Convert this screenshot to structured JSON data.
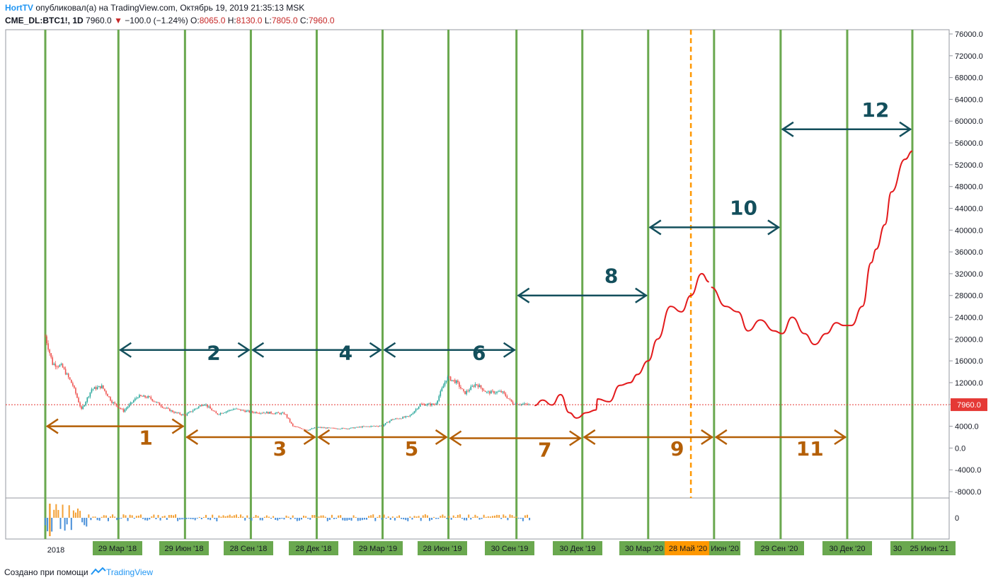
{
  "header": {
    "brand": "HortTV",
    "published": "опубликовал(а) на TradingView.com, Октябрь 19, 2019 21:35:13 MSK"
  },
  "symbol_line": {
    "symbol": "CME_DL:BTC1!, 1D",
    "last": "7960.0",
    "change": "−100.0 (−1.24%)",
    "o_label": "O:",
    "o_value": "8065.0",
    "h_label": "H:",
    "h_value": "8130.0",
    "l_label": "L:",
    "l_value": "7805.0",
    "c_label": "C:",
    "c_value": "7960.0"
  },
  "footer": {
    "created": "Создано при помощи",
    "brand": "TradingView"
  },
  "colors": {
    "green_line": "#6aa84f",
    "orange_arrow": "#b45f06",
    "teal_arrow": "#134f5c",
    "projection": "#e31a1c",
    "price_line": "#e53935",
    "candle_up": "#26a69a",
    "candle_down": "#ef5350",
    "date_badge": "#6aa84f",
    "highlight_badge": "#ff9800"
  },
  "chart_data": {
    "type": "line",
    "title": "",
    "ylim": [
      -10000,
      77000
    ],
    "y_ticks": [
      "76000.0",
      "72000.0",
      "68000.0",
      "64000.0",
      "60000.0",
      "56000.0",
      "52000.0",
      "48000.0",
      "44000.0",
      "40000.0",
      "36000.0",
      "32000.0",
      "28000.0",
      "24000.0",
      "20000.0",
      "16000.0",
      "12000.0",
      "8000.0",
      "4000.0",
      "0.0",
      "-4000.0",
      "-8000.0"
    ],
    "current_price": {
      "value": 7960,
      "label": "7960.0"
    },
    "volume_tick": "0",
    "x_labels": [
      "2018",
      "29 Мар '18",
      "29 Июн '18",
      "28 Сен '18",
      "28 Дек '18",
      "29 Мар '19",
      "28 Июн '19",
      "30 Сен '19",
      "30 Дек '19",
      "30 Мар '20",
      "28 Май '20",
      "Июн '20",
      "29 Сен '20",
      "30 Дек '20",
      "30",
      "25 Июн '21"
    ],
    "cycle_dates": [
      "2017-12-18",
      "2018-03-29",
      "2018-06-29",
      "2018-09-28",
      "2018-12-28",
      "2019-03-29",
      "2019-06-28",
      "2019-09-30",
      "2019-12-30",
      "2020-03-30",
      "2020-06-29",
      "2020-09-29",
      "2020-12-30",
      "2021-03-30"
    ],
    "highlight_date": {
      "date": "2020-05-28",
      "label": "28 Май '20"
    },
    "historical_price": [
      [
        "2017-12-18",
        20500
      ],
      [
        "2017-12-28",
        15500
      ],
      [
        "2018-01-10",
        15000
      ],
      [
        "2018-01-25",
        11500
      ],
      [
        "2018-02-06",
        7000
      ],
      [
        "2018-02-20",
        10800
      ],
      [
        "2018-03-06",
        11300
      ],
      [
        "2018-03-20",
        8500
      ],
      [
        "2018-04-05",
        6800
      ],
      [
        "2018-04-25",
        9500
      ],
      [
        "2018-05-10",
        9300
      ],
      [
        "2018-05-30",
        7500
      ],
      [
        "2018-06-15",
        6500
      ],
      [
        "2018-06-29",
        6000
      ],
      [
        "2018-07-25",
        8200
      ],
      [
        "2018-08-12",
        6200
      ],
      [
        "2018-09-05",
        7200
      ],
      [
        "2018-09-28",
        6600
      ],
      [
        "2018-10-20",
        6500
      ],
      [
        "2018-11-14",
        6300
      ],
      [
        "2018-11-25",
        4000
      ],
      [
        "2018-12-15",
        3300
      ],
      [
        "2018-12-28",
        3800
      ],
      [
        "2019-01-20",
        3600
      ],
      [
        "2019-02-10",
        3600
      ],
      [
        "2019-03-01",
        3900
      ],
      [
        "2019-03-29",
        4100
      ],
      [
        "2019-04-10",
        5200
      ],
      [
        "2019-05-05",
        5800
      ],
      [
        "2019-05-20",
        8000
      ],
      [
        "2019-06-10",
        8000
      ],
      [
        "2019-06-26",
        13000
      ],
      [
        "2019-07-10",
        12000
      ],
      [
        "2019-07-20",
        10000
      ],
      [
        "2019-08-05",
        11800
      ],
      [
        "2019-08-20",
        10200
      ],
      [
        "2019-09-10",
        10300
      ],
      [
        "2019-09-25",
        8200
      ],
      [
        "2019-10-18",
        7960
      ]
    ],
    "series": [
      {
        "values": [
          [
            "2019-10-25",
            7800
          ],
          [
            "2019-11-05",
            8800
          ],
          [
            "2019-11-18",
            7900
          ],
          [
            "2019-11-30",
            9800
          ],
          [
            "2019-12-12",
            6500
          ],
          [
            "2019-12-22",
            5500
          ],
          [
            "2020-01-05",
            6500
          ],
          [
            "2020-01-18",
            7000
          ],
          [
            "2020-01-20",
            9000
          ],
          [
            "2020-02-05",
            8500
          ],
          [
            "2020-02-20",
            11500
          ],
          [
            "2020-03-05",
            12000
          ],
          [
            "2020-03-15",
            13500
          ],
          [
            "2020-03-30",
            16000
          ],
          [
            "2020-04-12",
            20000
          ],
          [
            "2020-04-30",
            26000
          ],
          [
            "2020-05-15",
            25000
          ],
          [
            "2020-05-28",
            28000
          ],
          [
            "2020-06-12",
            32000
          ],
          [
            "2020-06-22",
            30500
          ]
        ]
      },
      {
        "values": [
          [
            "2020-06-25",
            29500
          ],
          [
            "2020-07-15",
            26000
          ],
          [
            "2020-08-01",
            25000
          ],
          [
            "2020-08-15",
            21500
          ],
          [
            "2020-09-01",
            23500
          ],
          [
            "2020-09-20",
            21500
          ],
          [
            "2020-10-01",
            21000
          ],
          [
            "2020-10-15",
            24000
          ],
          [
            "2020-11-01",
            21000
          ],
          [
            "2020-11-15",
            19000
          ],
          [
            "2020-12-01",
            21000
          ],
          [
            "2020-12-15",
            23000
          ],
          [
            "2020-12-25",
            22500
          ],
          [
            "2021-01-05",
            22500
          ],
          [
            "2021-01-20",
            26000
          ],
          [
            "2021-02-01",
            34000
          ],
          [
            "2021-02-08",
            36500
          ],
          [
            "2021-02-20",
            41000
          ],
          [
            "2021-03-01",
            47000
          ],
          [
            "2021-03-20",
            53000
          ],
          [
            "2021-03-30",
            54500
          ]
        ]
      }
    ],
    "cycles": [
      {
        "label": "1",
        "from": "2017-12-18",
        "to": "2018-06-29",
        "level": 4000,
        "row": "bottom"
      },
      {
        "label": "2",
        "from": "2018-03-29",
        "to": "2018-09-28",
        "level": 18000,
        "row": "top"
      },
      {
        "label": "3",
        "from": "2018-06-29",
        "to": "2018-12-28",
        "level": 2000,
        "row": "bottom"
      },
      {
        "label": "4",
        "from": "2018-09-28",
        "to": "2019-03-29",
        "level": 18000,
        "row": "top"
      },
      {
        "label": "5",
        "from": "2018-12-28",
        "to": "2019-06-28",
        "level": 2000,
        "row": "bottom"
      },
      {
        "label": "6",
        "from": "2019-03-29",
        "to": "2019-09-30",
        "level": 18000,
        "row": "top"
      },
      {
        "label": "7",
        "from": "2019-06-28",
        "to": "2019-12-30",
        "level": 1800,
        "row": "bottom"
      },
      {
        "label": "8",
        "from": "2019-09-30",
        "to": "2020-03-30",
        "level": 28000,
        "row": "top"
      },
      {
        "label": "9",
        "from": "2019-12-30",
        "to": "2020-06-29",
        "level": 2000,
        "row": "bottom"
      },
      {
        "label": "10",
        "from": "2020-03-30",
        "to": "2020-09-29",
        "level": 40500,
        "row": "top"
      },
      {
        "label": "11",
        "from": "2020-06-29",
        "to": "2020-12-30",
        "level": 2000,
        "row": "bottom"
      },
      {
        "label": "12",
        "from": "2020-09-29",
        "to": "2021-03-30",
        "level": 58500,
        "row": "top"
      }
    ]
  }
}
